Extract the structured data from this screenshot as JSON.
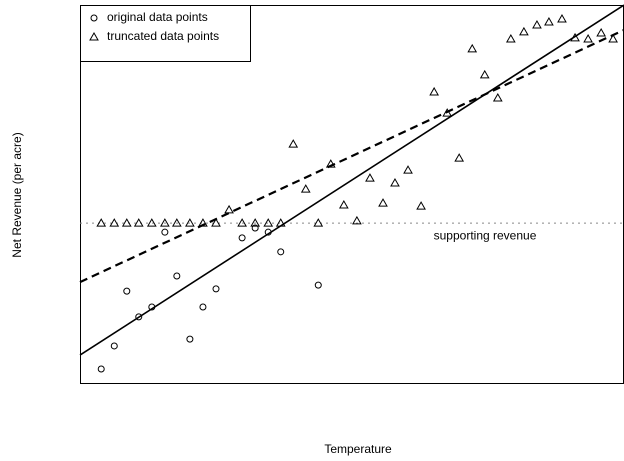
{
  "chart_data": {
    "type": "scatter",
    "xlabel": "Temperature",
    "ylabel": "Net Revenue (per acre)",
    "xlim": [
      0,
      100
    ],
    "ylim": [
      0,
      100
    ],
    "color": "#000000",
    "legend": "top-left",
    "series": [
      {
        "name": "original data points",
        "marker": "circle",
        "x": [
          3.9,
          6.3,
          8.6,
          10.8,
          13.2,
          15.6,
          17.8,
          20.2,
          22.6,
          25.0,
          29.8,
          32.2,
          34.6,
          36.9,
          43.8
        ],
        "y": [
          3.7,
          9.8,
          24.3,
          17.5,
          20.1,
          39.9,
          28.3,
          11.6,
          20.1,
          24.9,
          38.4,
          41.0,
          39.9,
          34.7,
          25.9
        ]
      },
      {
        "name": "truncated data points",
        "marker": "triangle",
        "x": [
          3.9,
          6.3,
          8.6,
          10.8,
          13.2,
          15.6,
          17.8,
          20.2,
          22.6,
          25.0,
          29.8,
          32.2,
          34.6,
          36.9,
          43.8,
          27.4,
          39.2,
          41.5,
          46.1,
          48.5,
          50.9,
          53.3,
          55.7,
          57.9,
          60.3,
          62.7,
          65.1,
          67.5,
          69.7,
          72.1,
          74.4,
          76.8,
          79.2,
          81.6,
          84.0,
          86.2,
          88.6,
          91.0,
          93.4,
          95.8,
          98.0
        ],
        "y": [
          42.3,
          42.3,
          42.3,
          42.3,
          42.3,
          42.3,
          42.3,
          42.3,
          42.3,
          42.3,
          42.3,
          42.3,
          42.3,
          42.3,
          42.3,
          45.8,
          63.2,
          51.3,
          57.9,
          47.1,
          42.9,
          54.2,
          47.6,
          52.9,
          56.3,
          46.8,
          77.0,
          71.4,
          59.5,
          88.4,
          81.5,
          75.4,
          91.0,
          92.9,
          94.7,
          95.5,
          96.3,
          91.3,
          91.0,
          92.6,
          91.0
        ]
      }
    ],
    "lines": [
      {
        "style": "solid",
        "x": [
          0,
          100
        ],
        "y": [
          7.4,
          100
        ]
      },
      {
        "style": "dashed",
        "x": [
          0,
          100
        ],
        "y": [
          26.7,
          93.4
        ]
      }
    ],
    "reference": {
      "y": 42.3,
      "style": "dotted",
      "label": "supporting revenue"
    }
  }
}
